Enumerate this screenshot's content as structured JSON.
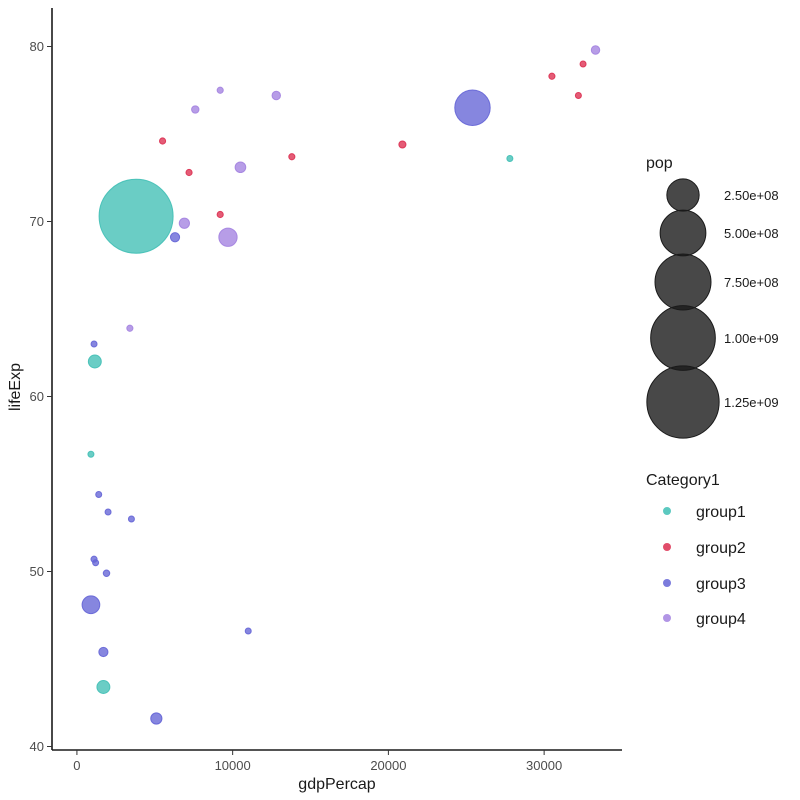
{
  "chart_data": {
    "type": "scatter",
    "xlabel": "gdpPercap",
    "ylabel": "lifeExp",
    "xlim": [
      -1600,
      35000
    ],
    "ylim": [
      39.8,
      82.2
    ],
    "x_ticks": [
      0,
      10000,
      20000,
      30000
    ],
    "x_tick_labels": [
      "0",
      "10000",
      "20000",
      "30000"
    ],
    "y_ticks": [
      40,
      50,
      60,
      70,
      80
    ],
    "y_tick_labels": [
      "40",
      "50",
      "60",
      "70",
      "80"
    ],
    "grid": false,
    "size_legend": {
      "title": "pop",
      "values": [
        250000000,
        500000000,
        750000000,
        1000000000,
        1250000000
      ],
      "labels": [
        "2.50e+08",
        "5.00e+08",
        "7.50e+08",
        "1.00e+09",
        "1.25e+09"
      ],
      "color": "#1a1a1a"
    },
    "color_legend": {
      "title": "Category1",
      "entries": [
        {
          "name": "group1",
          "color": "#40bfb5"
        },
        {
          "name": "group2",
          "color": "#dc2e50"
        },
        {
          "name": "group3",
          "color": "#6464d6"
        },
        {
          "name": "group4",
          "color": "#a382e0"
        }
      ]
    },
    "series": [
      {
        "name": "group1",
        "color": "#40bfb5",
        "points": [
          {
            "x": 3800,
            "y": 70.3,
            "pop": 1310000000
          },
          {
            "x": 1150,
            "y": 62.0,
            "pop": 40000000
          },
          {
            "x": 900,
            "y": 56.7,
            "pop": 8000000
          },
          {
            "x": 1700,
            "y": 43.4,
            "pop": 40000000
          },
          {
            "x": 27800,
            "y": 73.6,
            "pop": 3000000
          }
        ]
      },
      {
        "name": "group2",
        "color": "#dc2e50",
        "points": [
          {
            "x": 5500,
            "y": 74.6,
            "pop": 9000000
          },
          {
            "x": 7200,
            "y": 72.8,
            "pop": 9000000
          },
          {
            "x": 9200,
            "y": 70.4,
            "pop": 9000000
          },
          {
            "x": 13800,
            "y": 73.7,
            "pop": 9000000
          },
          {
            "x": 20900,
            "y": 74.4,
            "pop": 12000000
          },
          {
            "x": 30500,
            "y": 78.3,
            "pop": 9000000
          },
          {
            "x": 32500,
            "y": 79.0,
            "pop": 8000000
          },
          {
            "x": 32200,
            "y": 77.2,
            "pop": 8000000
          }
        ]
      },
      {
        "name": "group3",
        "color": "#6464d6",
        "points": [
          {
            "x": 25400,
            "y": 76.5,
            "pop": 300000000
          },
          {
            "x": 6300,
            "y": 69.1,
            "pop": 20000000
          },
          {
            "x": 1100,
            "y": 63.0,
            "pop": 2000000
          },
          {
            "x": 1400,
            "y": 54.4,
            "pop": 8000000
          },
          {
            "x": 2000,
            "y": 53.4,
            "pop": 1500000
          },
          {
            "x": 3500,
            "y": 53.0,
            "pop": 4000000
          },
          {
            "x": 1100,
            "y": 50.7,
            "pop": 9000000
          },
          {
            "x": 1200,
            "y": 50.5,
            "pop": 8000000
          },
          {
            "x": 1900,
            "y": 49.9,
            "pop": 10000000
          },
          {
            "x": 900,
            "y": 48.1,
            "pop": 75000000
          },
          {
            "x": 1700,
            "y": 45.4,
            "pop": 20000000
          },
          {
            "x": 5100,
            "y": 41.6,
            "pop": 30000000
          },
          {
            "x": 11000,
            "y": 46.6,
            "pop": 2000000
          }
        ]
      },
      {
        "name": "group4",
        "color": "#a382e0",
        "points": [
          {
            "x": 9200,
            "y": 77.5,
            "pop": 9000000
          },
          {
            "x": 7600,
            "y": 76.4,
            "pop": 13000000
          },
          {
            "x": 12800,
            "y": 77.2,
            "pop": 17000000
          },
          {
            "x": 33300,
            "y": 79.8,
            "pop": 17000000
          },
          {
            "x": 10500,
            "y": 73.1,
            "pop": 27000000
          },
          {
            "x": 6900,
            "y": 69.9,
            "pop": 25000000
          },
          {
            "x": 9700,
            "y": 69.1,
            "pop": 80000000
          },
          {
            "x": 3400,
            "y": 63.9,
            "pop": 9000000
          }
        ]
      }
    ]
  }
}
